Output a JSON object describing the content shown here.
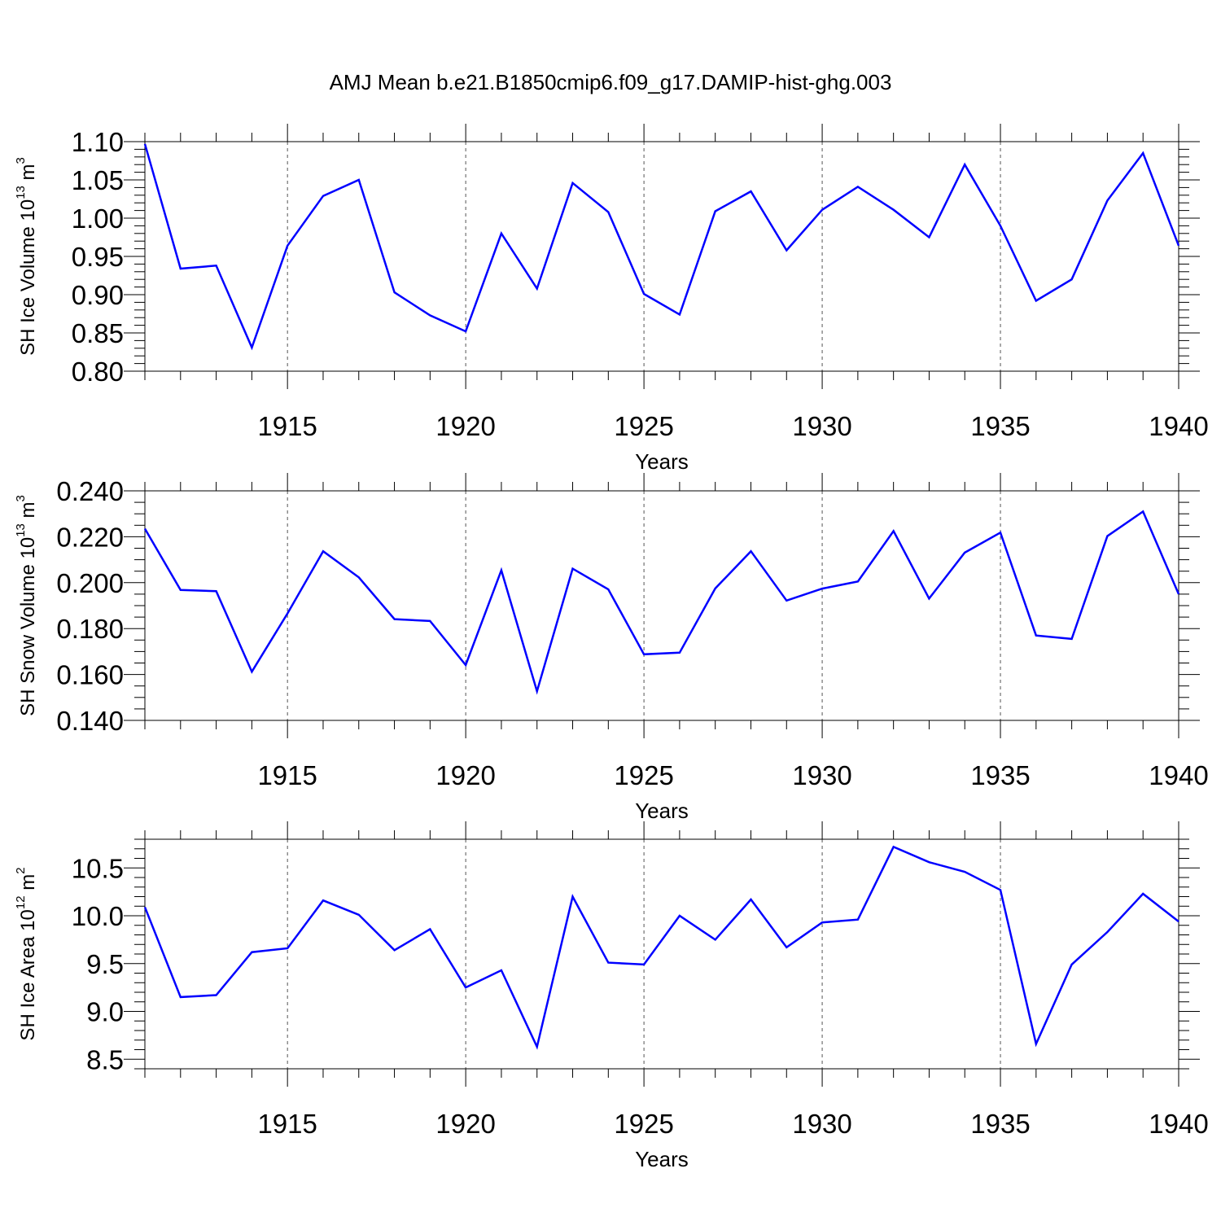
{
  "title": "AMJ Mean b.e21.B1850cmip6.f09_g17.DAMIP-hist-ghg.003",
  "colors": {
    "line": "#0000ff",
    "grid": "#555555",
    "axis": "#000000"
  },
  "chart_data": [
    {
      "type": "line",
      "ylabel": {
        "base": "SH Ice Volume 10",
        "exp": "13",
        "unit": " m",
        "unit_exp": "3"
      },
      "xlabel": "Years",
      "xlim": [
        1911,
        1940
      ],
      "ylim": [
        0.8,
        1.1
      ],
      "xticks": [
        1915,
        1920,
        1925,
        1930,
        1935,
        1940
      ],
      "yticks": [
        0.8,
        0.85,
        0.9,
        0.95,
        1.0,
        1.05,
        1.1
      ],
      "ytick_labels": [
        "0.80",
        "0.85",
        "0.90",
        "0.95",
        "1.00",
        "1.05",
        "1.10"
      ],
      "yminor_step": 0.01,
      "grid": "dashed vertical at major x ticks",
      "x": [
        1911,
        1912,
        1913,
        1914,
        1915,
        1916,
        1917,
        1918,
        1919,
        1920,
        1921,
        1922,
        1923,
        1924,
        1925,
        1926,
        1927,
        1928,
        1929,
        1930,
        1931,
        1932,
        1933,
        1934,
        1935,
        1936,
        1937,
        1938,
        1939,
        1940
      ],
      "values": [
        1.097,
        0.934,
        0.938,
        0.831,
        0.964,
        1.029,
        1.05,
        0.903,
        0.873,
        0.852,
        0.98,
        0.908,
        1.046,
        1.008,
        0.901,
        0.874,
        1.009,
        1.035,
        0.958,
        1.011,
        1.041,
        1.011,
        0.975,
        1.07,
        0.99,
        0.892,
        0.92,
        1.023,
        1.085,
        0.964
      ]
    },
    {
      "type": "line",
      "ylabel": {
        "base": "SH Snow Volume 10",
        "exp": "13",
        "unit": " m",
        "unit_exp": "3"
      },
      "xlabel": "Years",
      "xlim": [
        1911,
        1940
      ],
      "ylim": [
        0.14,
        0.24
      ],
      "xticks": [
        1915,
        1920,
        1925,
        1930,
        1935,
        1940
      ],
      "yticks": [
        0.14,
        0.16,
        0.18,
        0.2,
        0.22,
        0.24
      ],
      "ytick_labels": [
        "0.140",
        "0.160",
        "0.180",
        "0.200",
        "0.220",
        "0.240"
      ],
      "yminor_step": 0.005,
      "grid": "dashed vertical at major x ticks",
      "x": [
        1911,
        1912,
        1913,
        1914,
        1915,
        1916,
        1917,
        1918,
        1919,
        1920,
        1921,
        1922,
        1923,
        1924,
        1925,
        1926,
        1927,
        1928,
        1929,
        1930,
        1931,
        1932,
        1933,
        1934,
        1935,
        1936,
        1937,
        1938,
        1939,
        1940
      ],
      "values": [
        0.2235,
        0.1968,
        0.1963,
        0.1612,
        0.1866,
        0.2137,
        0.2023,
        0.1841,
        0.1833,
        0.1641,
        0.2054,
        0.1527,
        0.2061,
        0.1971,
        0.1688,
        0.1695,
        0.1975,
        0.2137,
        0.1922,
        0.1974,
        0.2005,
        0.2225,
        0.1931,
        0.2131,
        0.2218,
        0.177,
        0.1755,
        0.2203,
        0.231,
        0.195
      ]
    },
    {
      "type": "line",
      "ylabel": {
        "base": "SH Ice Area 10",
        "exp": "12",
        "unit": " m",
        "unit_exp": "2"
      },
      "xlabel": "Years",
      "xlim": [
        1911,
        1940
      ],
      "ylim": [
        8.4,
        10.8
      ],
      "xticks": [
        1915,
        1920,
        1925,
        1930,
        1935,
        1940
      ],
      "yticks": [
        8.5,
        9.0,
        9.5,
        10.0,
        10.5
      ],
      "ytick_labels": [
        "8.5",
        "9.0",
        "9.5",
        "10.0",
        "10.5"
      ],
      "yminor_step": 0.1,
      "grid": "dashed vertical at major x ticks",
      "x": [
        1911,
        1912,
        1913,
        1914,
        1915,
        1916,
        1917,
        1918,
        1919,
        1920,
        1921,
        1922,
        1923,
        1924,
        1925,
        1926,
        1927,
        1928,
        1929,
        1930,
        1931,
        1932,
        1933,
        1934,
        1935,
        1936,
        1937,
        1938,
        1939,
        1940
      ],
      "values": [
        10.09,
        9.15,
        9.17,
        9.62,
        9.66,
        10.16,
        10.01,
        9.64,
        9.86,
        9.25,
        9.43,
        8.63,
        10.2,
        9.51,
        9.49,
        10.0,
        9.75,
        10.17,
        9.67,
        9.93,
        9.96,
        10.72,
        10.56,
        10.46,
        10.27,
        8.66,
        9.49,
        9.83,
        10.23,
        9.94
      ]
    }
  ]
}
